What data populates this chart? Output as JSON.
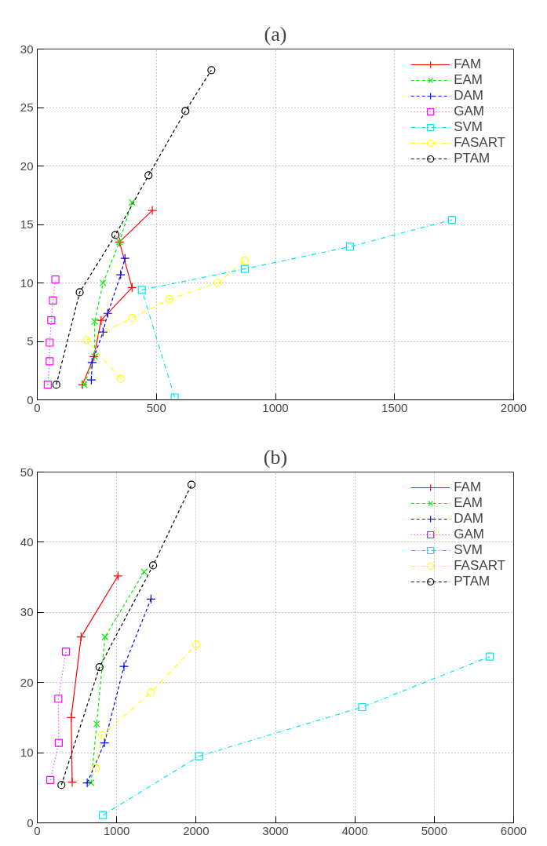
{
  "chart_data": [
    {
      "type": "line",
      "title": "(a)",
      "xlim": [
        0,
        2000
      ],
      "ylim": [
        0,
        30
      ],
      "xticks": [
        0,
        500,
        1000,
        1500,
        2000
      ],
      "yticks": [
        0,
        5,
        10,
        15,
        20,
        25,
        30
      ],
      "grid": true,
      "legend": "top right",
      "series": [
        {
          "name": "FAM",
          "color": "#ff0000",
          "marker": "cross",
          "line_style": "solid",
          "x": [
            190,
            238,
            268,
            398,
            345,
            483
          ],
          "values": [
            1.3,
            3.7,
            6.8,
            9.6,
            13.5,
            16.2
          ]
        },
        {
          "name": "EAM",
          "color": "#00ee00",
          "marker": "x",
          "line_style": "dashed",
          "x": [
            197,
            241,
            241,
            276,
            345,
            398
          ],
          "values": [
            1.3,
            3.7,
            6.7,
            10.0,
            13.5,
            16.9
          ]
        },
        {
          "name": "DAM",
          "color": "#0000ff",
          "marker": "cross",
          "line_style": "dashed",
          "x": [
            227,
            230,
            276,
            296,
            350,
            368
          ],
          "values": [
            1.7,
            3.2,
            5.8,
            7.4,
            10.7,
            12.1
          ]
        },
        {
          "name": "GAM",
          "color": "#ff00ff",
          "marker": "square",
          "line_style": "dotted",
          "x": [
            44,
            52,
            52,
            59,
            66,
            76
          ],
          "values": [
            1.3,
            3.3,
            4.9,
            6.8,
            8.5,
            10.3
          ]
        },
        {
          "name": "SVM",
          "color": "#00e5ee",
          "marker": "square",
          "line_style": "dashdot",
          "x": [
            577,
            439,
            871,
            1313,
            1741
          ],
          "values": [
            0.2,
            9.4,
            11.2,
            13.1,
            15.4
          ]
        },
        {
          "name": "FASART",
          "color": "#ffff00",
          "marker": "circle",
          "line_style": "dashdot",
          "x": [
            350,
            207,
            398,
            555,
            757,
            871
          ],
          "values": [
            1.8,
            5.1,
            7.0,
            8.6,
            10.0,
            11.9
          ]
        },
        {
          "name": "PTAM",
          "color": "#000000",
          "marker": "circle",
          "line_style": "dashed",
          "x": [
            80,
            178,
            328,
            467,
            622,
            731
          ],
          "values": [
            1.3,
            9.2,
            14.1,
            19.2,
            24.7,
            28.2
          ]
        }
      ]
    },
    {
      "type": "line",
      "title": "(b)",
      "xlim": [
        0,
        6000
      ],
      "ylim": [
        0,
        50
      ],
      "xticks": [
        0,
        1000,
        2000,
        3000,
        4000,
        5000,
        6000
      ],
      "yticks": [
        0,
        10,
        20,
        30,
        40,
        50
      ],
      "grid": true,
      "legend": "top right",
      "series": [
        {
          "name": "FAM",
          "color": "#ff0000",
          "marker": "cross",
          "line_style": "solid",
          "x": [
            440,
            427,
            552,
            1016
          ],
          "values": [
            5.8,
            15.0,
            26.5,
            35.2
          ]
        },
        {
          "name": "EAM",
          "color": "#00ee00",
          "marker": "x",
          "line_style": "dashed",
          "x": [
            678,
            748,
            853,
            1346
          ],
          "values": [
            5.7,
            14.1,
            26.5,
            35.8
          ]
        },
        {
          "name": "DAM",
          "color": "#0000ff",
          "marker": "cross",
          "line_style": "dashed",
          "x": [
            629,
            847,
            1092,
            1432
          ],
          "values": [
            5.7,
            11.4,
            22.3,
            31.9
          ]
        },
        {
          "name": "GAM",
          "color": "#ff00ff",
          "marker": "square",
          "line_style": "dotted",
          "x": [
            165,
            271,
            265,
            361
          ],
          "values": [
            6.1,
            11.4,
            17.7,
            24.4
          ]
        },
        {
          "name": "SVM",
          "color": "#00e5ee",
          "marker": "square",
          "line_style": "dashdot",
          "x": [
            827,
            2038,
            4092,
            5700
          ],
          "values": [
            1.1,
            9.5,
            16.5,
            23.7
          ]
        },
        {
          "name": "FASART",
          "color": "#ffff00",
          "marker": "circle",
          "line_style": "dashdot",
          "x": [
            738,
            817,
            1432,
            2001
          ],
          "values": [
            7.8,
            12.5,
            18.6,
            25.4
          ]
        },
        {
          "name": "PTAM",
          "color": "#000000",
          "marker": "circle",
          "line_style": "dashed",
          "x": [
            304,
            784,
            1459,
            1942
          ],
          "values": [
            5.4,
            22.2,
            36.7,
            48.2
          ]
        }
      ]
    }
  ]
}
